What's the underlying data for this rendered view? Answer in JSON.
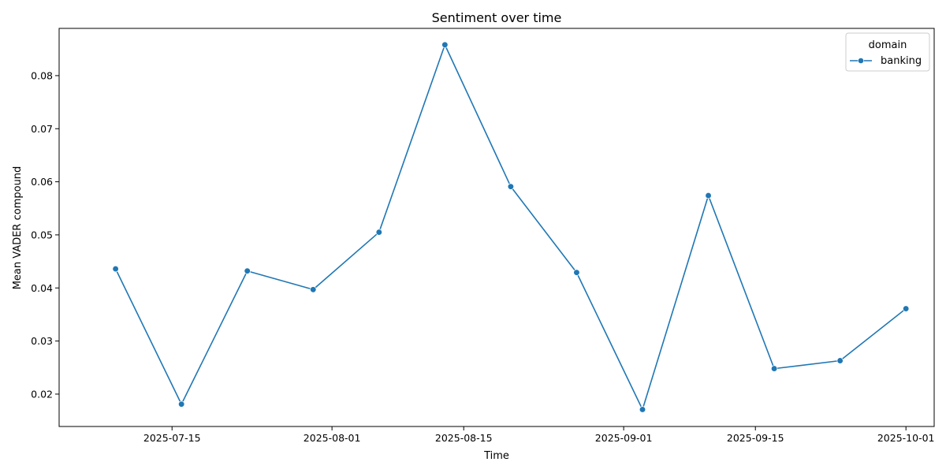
{
  "chart_data": {
    "type": "line",
    "title": "Sentiment over time",
    "xlabel": "Time",
    "ylabel": "Mean VADER compound",
    "x_type": "date",
    "xlim": [
      "2025-07-03",
      "2025-10-04"
    ],
    "ylim": [
      0.0139,
      0.0889
    ],
    "x_ticks": [
      "2025-07-15",
      "2025-08-01",
      "2025-08-15",
      "2025-09-01",
      "2025-09-15",
      "2025-10-01"
    ],
    "y_ticks": [
      0.02,
      0.03,
      0.04,
      0.05,
      0.06,
      0.07,
      0.08
    ],
    "y_tick_labels": [
      "0.02",
      "0.03",
      "0.04",
      "0.05",
      "0.06",
      "0.07",
      "0.08"
    ],
    "grid": false,
    "legend": {
      "title": "domain",
      "position": "top-right"
    },
    "series": [
      {
        "name": "banking",
        "color": "#1f77b4",
        "marker": "circle",
        "x": [
          "2025-07-09",
          "2025-07-16",
          "2025-07-23",
          "2025-07-30",
          "2025-08-06",
          "2025-08-13",
          "2025-08-20",
          "2025-08-27",
          "2025-09-03",
          "2025-09-10",
          "2025-09-17",
          "2025-09-24",
          "2025-10-01"
        ],
        "y": [
          0.0436,
          0.0181,
          0.0432,
          0.0397,
          0.0505,
          0.0858,
          0.0591,
          0.0429,
          0.0171,
          0.0574,
          0.0248,
          0.0263,
          0.0361
        ]
      }
    ]
  }
}
